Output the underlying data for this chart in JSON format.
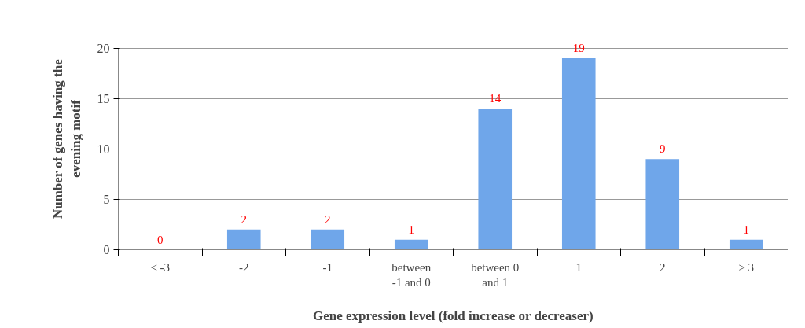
{
  "chart_data": {
    "type": "bar",
    "xlabel": "Gene expression level (fold increase or decreaser)",
    "ylabel": "Number of genes having the\nevening motif",
    "categories": [
      "< -3",
      "-2",
      "-1",
      "between\n-1 and 0",
      "between 0\nand 1",
      "1",
      "2",
      "> 3"
    ],
    "values": [
      0,
      2,
      2,
      1,
      14,
      19,
      9,
      1
    ],
    "color": "#6fa6ea",
    "ylim": [
      0,
      20
    ],
    "yticks": [
      0,
      5,
      10,
      15,
      20
    ],
    "grid": "y",
    "data_labels": true
  }
}
